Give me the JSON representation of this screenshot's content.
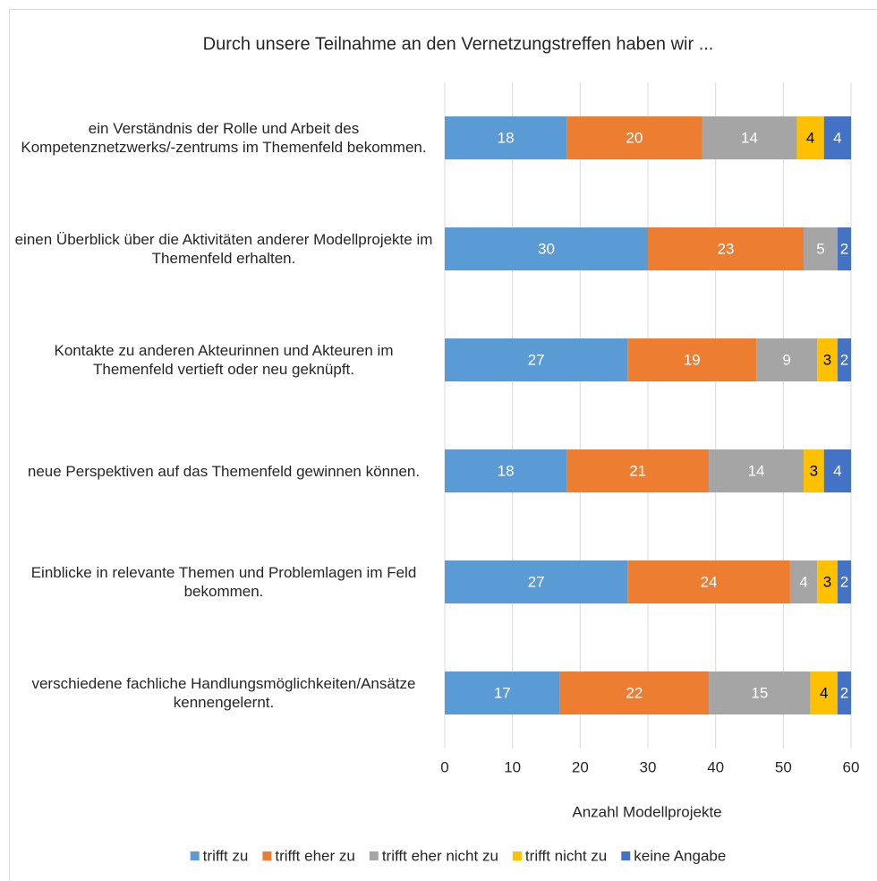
{
  "chart_data": {
    "type": "stacked_bar_horizontal",
    "title": "Durch unsere Teilnahme an den Vernetzungstreffen haben wir ...",
    "x_axis_label": "Anzahl Modellprojekte",
    "categories": [
      "ein Verständnis der Rolle und Arbeit des Kompetenznetzwerks/-zentrums im Themenfeld bekommen.",
      "einen Überblick über die Aktivitäten anderer Modellprojekte im Themenfeld erhalten.",
      "Kontakte zu anderen Akteurinnen und Akteuren im Themenfeld vertieft oder neu geknüpft.",
      "neue Perspektiven auf das Themenfeld gewinnen können.",
      "Einblicke in relevante Themen und Problemlagen im Feld bekommen.",
      "verschiedene fachliche Handlungsmöglichkeiten/Ansätze kennengelernt."
    ],
    "series": [
      {
        "name": "trifft zu",
        "color": "#5b9bd5",
        "label_color": "#ffffff",
        "values": [
          18,
          30,
          27,
          18,
          27,
          17
        ]
      },
      {
        "name": "trifft eher zu",
        "color": "#ed7d31",
        "label_color": "#ffffff",
        "values": [
          20,
          23,
          19,
          21,
          24,
          22
        ]
      },
      {
        "name": "trifft eher nicht zu",
        "color": "#a5a5a5",
        "label_color": "#ffffff",
        "values": [
          14,
          5,
          9,
          14,
          4,
          15
        ]
      },
      {
        "name": "trifft nicht zu",
        "color": "#ffc000",
        "label_color": "#000000",
        "values": [
          4,
          null,
          3,
          3,
          3,
          4
        ]
      },
      {
        "name": "keine Angabe",
        "color": "#4472c4",
        "label_color": "#ffffff",
        "values": [
          4,
          2,
          2,
          4,
          2,
          2
        ]
      }
    ],
    "xlim": [
      0,
      60
    ],
    "xticks": [
      0,
      10,
      20,
      30,
      40,
      50,
      60
    ],
    "grid": true,
    "legend": "bottom"
  }
}
